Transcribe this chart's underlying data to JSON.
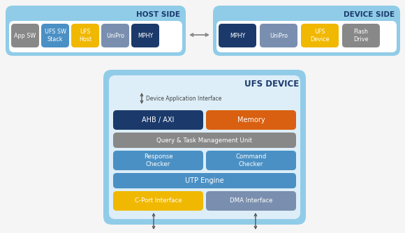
{
  "fig_width": 5.8,
  "fig_height": 3.34,
  "dpi": 100,
  "bg_color": "#f5f5f5",
  "light_blue_bg": "#72bde8",
  "light_blue_bg2": "#a8d8f0",
  "white_inner": "#ffffff",
  "dark_blue": "#1b3a6b",
  "medium_blue": "#4a7ab5",
  "light_blue_block": "#4a90c4",
  "gray_block": "#888888",
  "yellow_block": "#f0b800",
  "orange_block": "#d96010",
  "purple_gray": "#7a8faf",
  "host_side_label": "HOST SIDE",
  "device_side_label": "DEVICE SIDE",
  "ufs_device_label": "UFS DEVICE",
  "host_blocks": [
    {
      "label": "App SW",
      "color": "#888888"
    },
    {
      "label": "UFS SW\nStack",
      "color": "#4a90c4"
    },
    {
      "label": "UFS\nHost",
      "color": "#f0b800"
    },
    {
      "label": "UniPro",
      "color": "#7a8faf"
    },
    {
      "label": "MPHY",
      "color": "#1b3a6b"
    }
  ],
  "device_side_blocks": [
    {
      "label": "MPHY",
      "color": "#1b3a6b"
    },
    {
      "label": "UniPro",
      "color": "#7a8faf"
    },
    {
      "label": "UFS\nDevice",
      "color": "#f0b800"
    },
    {
      "label": "Flash\nDrive",
      "color": "#888888"
    }
  ]
}
